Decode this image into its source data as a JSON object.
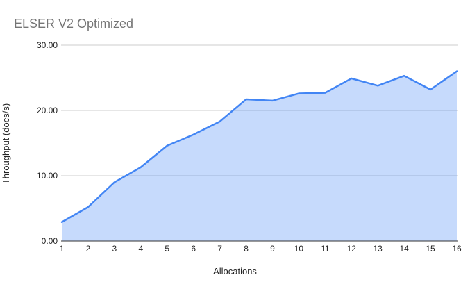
{
  "chart_data": {
    "type": "area",
    "title": "ELSER V2 Optimized",
    "xlabel": "Allocations",
    "ylabel": "Throughput (docs/s)",
    "categories": [
      "1",
      "2",
      "3",
      "4",
      "5",
      "6",
      "7",
      "8",
      "9",
      "10",
      "11",
      "12",
      "13",
      "14",
      "15",
      "16"
    ],
    "series": [
      {
        "name": "Throughput (docs/s)",
        "values": [
          2.9,
          5.2,
          9.0,
          11.3,
          14.6,
          16.3,
          18.3,
          21.7,
          21.5,
          22.6,
          22.7,
          24.9,
          23.8,
          25.3,
          23.2,
          26.0
        ]
      }
    ],
    "ylim": [
      0,
      30
    ],
    "yticks": [
      0,
      10,
      20,
      30
    ],
    "ytick_labels": [
      "0.00",
      "10.00",
      "20.00",
      "30.00"
    ],
    "grid": "horizontal",
    "legend": "none",
    "colors": {
      "line": "#4285f4",
      "fill_rgba": "rgba(66,133,244,0.3)",
      "gridline": "#cccccc",
      "axis_line": "#333333",
      "title_text": "#757575",
      "tick_text": "#222222"
    }
  }
}
